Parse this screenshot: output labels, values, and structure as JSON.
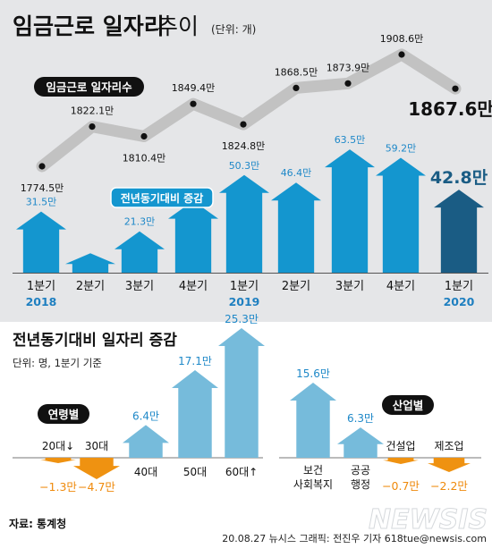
{
  "header": {
    "title": "임금근로 일자리 추이",
    "title_suffix": "추이",
    "title_main": "임금근로 일자리",
    "unit": "(단위: 개)"
  },
  "colors": {
    "panel_bg": "#e5e6e8",
    "bar_blue": "#1496cf",
    "bar_dark": "#1a5c84",
    "bar_light": "#76bbdb",
    "bar_orange": "#ef9211",
    "line_gray": "#c2c2c2",
    "year_blue": "#1e7fc0",
    "negative_orange": "#ef8a0c"
  },
  "chart_data": [
    {
      "type": "line",
      "name": "jobs_count",
      "label": "임금근로 일자리수",
      "categories": [
        "2018 1분기",
        "2분기",
        "3분기",
        "4분기",
        "2019 1분기",
        "2분기",
        "3분기",
        "4분기",
        "2020 1분기"
      ],
      "values": [
        1774.5,
        1822.1,
        1810.4,
        1849.4,
        1824.8,
        1868.5,
        1873.9,
        1908.6,
        1867.6
      ],
      "value_labels": [
        "1774.5만",
        "1822.1만",
        "1810.4만",
        "1849.4만",
        "1824.8만",
        "1868.5만",
        "1873.9만",
        "1908.6만",
        "1867.6만"
      ],
      "ylim": [
        1760,
        1920
      ]
    },
    {
      "type": "bar",
      "name": "yoy_change_quarterly",
      "label": "전년동기대비 증감",
      "categories": [
        "1분기",
        "2분기",
        "3분기",
        "4분기",
        "1분기",
        "2분기",
        "3분기",
        "4분기",
        "1분기"
      ],
      "years": [
        "2018",
        "",
        "",
        "",
        "2019",
        "",
        "",
        "",
        "2020"
      ],
      "values": [
        31.5,
        10,
        21.3,
        37,
        50.3,
        46.4,
        63.5,
        59.2,
        42.8
      ],
      "value_labels": [
        "31.5만",
        "",
        "21.3만",
        "",
        "50.3만",
        "46.4만",
        "63.5만",
        "59.2만",
        "42.8만"
      ],
      "ylim": [
        0,
        70
      ]
    },
    {
      "type": "bar",
      "name": "yoy_by_age",
      "label": "연령별",
      "categories": [
        "20대↓",
        "30대",
        "40대",
        "50대",
        "60대↑"
      ],
      "values": [
        -1.3,
        -4.7,
        6.4,
        17.1,
        25.3
      ],
      "value_labels": [
        "−1.3만",
        "−4.7만",
        "6.4만",
        "17.1만",
        "25.3만"
      ]
    },
    {
      "type": "bar",
      "name": "yoy_by_industry",
      "label": "산업별",
      "categories": [
        "보건 사회복지",
        "공공 행정",
        "건설업",
        "제조업"
      ],
      "values": [
        15.6,
        6.3,
        -0.7,
        -2.2
      ],
      "value_labels": [
        "15.6만",
        "6.3만",
        "−0.7만",
        "−2.2만"
      ]
    }
  ],
  "section2": {
    "title": "전년동기대비 일자리 증감",
    "unit": "단위: 명, 1분기 기준"
  },
  "labels": {
    "industry_1_line1": "보건",
    "industry_1_line2": "사회복지",
    "industry_2_line1": "공공",
    "industry_2_line2": "행정"
  },
  "footer": {
    "source": "자료: 통계청",
    "credit": "20.08.27 뉴시스 그래픽: 전진우 기자 618tue@newsis.com",
    "watermark": "NEWSIS"
  }
}
